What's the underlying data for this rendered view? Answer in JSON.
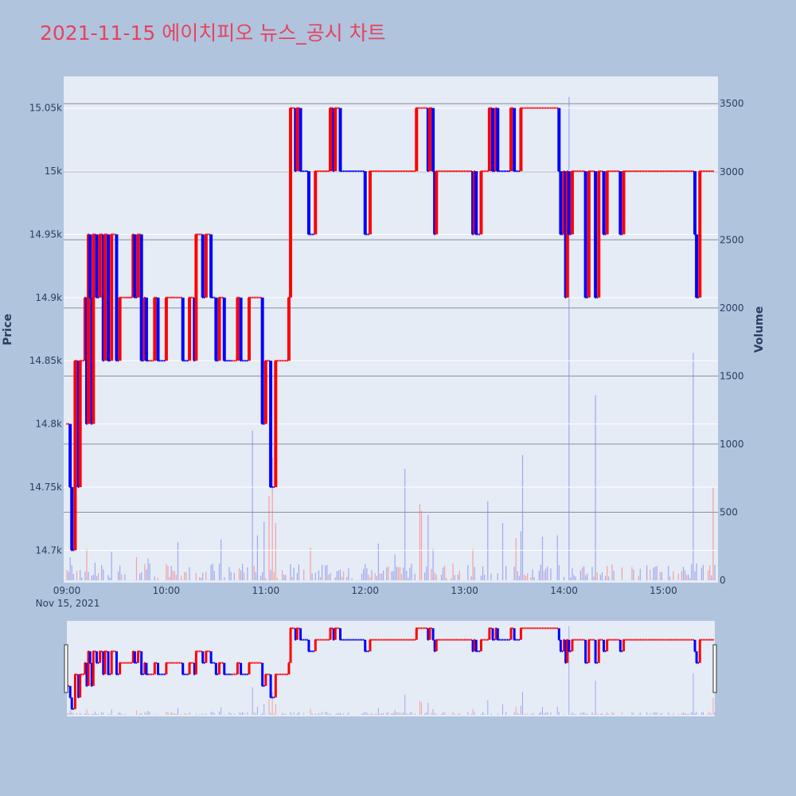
{
  "title": "2021-11-15 에이치피오 뉴스_공시 차트",
  "colors": {
    "up": "#ff0000",
    "down": "#0000ff",
    "page_bg": "#b0c4de",
    "plot_bg": "#e5ecf6",
    "title": "#e8425c"
  },
  "chart_data": {
    "type": "candlestick",
    "title": "2021-11-15 에이치피오 뉴스_공시 차트",
    "ylabel": "Price",
    "y2label": "Volume",
    "x_date_label": "Nov 15, 2021",
    "x_ticks": [
      "09:00",
      "10:00",
      "11:00",
      "12:00",
      "13:00",
      "14:00",
      "15:00"
    ],
    "y_ticks": [
      "14.7k",
      "14.75k",
      "14.8k",
      "14.85k",
      "14.9k",
      "14.95k",
      "15k",
      "15.05k"
    ],
    "y2_ticks": [
      "0",
      "500",
      "1000",
      "1500",
      "2000",
      "2500",
      "3000",
      "3500"
    ],
    "ylim": [
      14675,
      15075
    ],
    "y2lim": [
      0,
      3700
    ],
    "xlim_minutes": [
      540,
      931
    ],
    "grid": true,
    "range_slider": true,
    "price_segments": [
      {
        "t": 540,
        "p": 14800
      },
      {
        "t": 542,
        "p": 14750
      },
      {
        "t": 543,
        "p": 14700
      },
      {
        "t": 545,
        "p": 14850
      },
      {
        "t": 547,
        "p": 14750
      },
      {
        "t": 548,
        "p": 14850
      },
      {
        "t": 551,
        "p": 14900
      },
      {
        "t": 552,
        "p": 14800
      },
      {
        "t": 553,
        "p": 14950
      },
      {
        "t": 554,
        "p": 14900
      },
      {
        "t": 555,
        "p": 14800
      },
      {
        "t": 556,
        "p": 14950
      },
      {
        "t": 558,
        "p": 14900
      },
      {
        "t": 560,
        "p": 14950
      },
      {
        "t": 562,
        "p": 14850
      },
      {
        "t": 563,
        "p": 14950
      },
      {
        "t": 565,
        "p": 14850
      },
      {
        "t": 567,
        "p": 14950
      },
      {
        "t": 570,
        "p": 14850
      },
      {
        "t": 572,
        "p": 14900
      },
      {
        "t": 578,
        "p": 14900
      },
      {
        "t": 580,
        "p": 14950
      },
      {
        "t": 581,
        "p": 14900
      },
      {
        "t": 583,
        "p": 14950
      },
      {
        "t": 585,
        "p": 14850
      },
      {
        "t": 587,
        "p": 14900
      },
      {
        "t": 588,
        "p": 14850
      },
      {
        "t": 590,
        "p": 14850
      },
      {
        "t": 593,
        "p": 14900
      },
      {
        "t": 595,
        "p": 14850
      },
      {
        "t": 600,
        "p": 14900
      },
      {
        "t": 610,
        "p": 14850
      },
      {
        "t": 614,
        "p": 14900
      },
      {
        "t": 617,
        "p": 14850
      },
      {
        "t": 618,
        "p": 14950
      },
      {
        "t": 622,
        "p": 14900
      },
      {
        "t": 624,
        "p": 14950
      },
      {
        "t": 627,
        "p": 14900
      },
      {
        "t": 630,
        "p": 14850
      },
      {
        "t": 632,
        "p": 14900
      },
      {
        "t": 635,
        "p": 14850
      },
      {
        "t": 640,
        "p": 14850
      },
      {
        "t": 643,
        "p": 14900
      },
      {
        "t": 645,
        "p": 14850
      },
      {
        "t": 650,
        "p": 14900
      },
      {
        "t": 655,
        "p": 14900
      },
      {
        "t": 658,
        "p": 14800
      },
      {
        "t": 660,
        "p": 14850
      },
      {
        "t": 663,
        "p": 14750
      },
      {
        "t": 666,
        "p": 14850
      },
      {
        "t": 672,
        "p": 14850
      },
      {
        "t": 674,
        "p": 14900
      },
      {
        "t": 675,
        "p": 15050
      },
      {
        "t": 678,
        "p": 15000
      },
      {
        "t": 679,
        "p": 15050
      },
      {
        "t": 681,
        "p": 15000
      },
      {
        "t": 686,
        "p": 14950
      },
      {
        "t": 690,
        "p": 15000
      },
      {
        "t": 699,
        "p": 15050
      },
      {
        "t": 701,
        "p": 15000
      },
      {
        "t": 702,
        "p": 15050
      },
      {
        "t": 705,
        "p": 15000
      },
      {
        "t": 720,
        "p": 14950
      },
      {
        "t": 723,
        "p": 15000
      },
      {
        "t": 745,
        "p": 15000
      },
      {
        "t": 751,
        "p": 15050
      },
      {
        "t": 758,
        "p": 15000
      },
      {
        "t": 759,
        "p": 15050
      },
      {
        "t": 761,
        "p": 15000
      },
      {
        "t": 762,
        "p": 14950
      },
      {
        "t": 763,
        "p": 15000
      },
      {
        "t": 785,
        "p": 14950
      },
      {
        "t": 786,
        "p": 15000
      },
      {
        "t": 787,
        "p": 14950
      },
      {
        "t": 790,
        "p": 15000
      },
      {
        "t": 795,
        "p": 15050
      },
      {
        "t": 797,
        "p": 15000
      },
      {
        "t": 799,
        "p": 15050
      },
      {
        "t": 800,
        "p": 15000
      },
      {
        "t": 808,
        "p": 15050
      },
      {
        "t": 810,
        "p": 15000
      },
      {
        "t": 814,
        "p": 15050
      },
      {
        "t": 835,
        "p": 15050
      },
      {
        "t": 837,
        "p": 15000
      },
      {
        "t": 838,
        "p": 14950
      },
      {
        "t": 840,
        "p": 15000
      },
      {
        "t": 841,
        "p": 14900
      },
      {
        "t": 842,
        "p": 15000
      },
      {
        "t": 843,
        "p": 14950
      },
      {
        "t": 845,
        "p": 15000
      },
      {
        "t": 853,
        "p": 14900
      },
      {
        "t": 855,
        "p": 15000
      },
      {
        "t": 859,
        "p": 14900
      },
      {
        "t": 861,
        "p": 15000
      },
      {
        "t": 864,
        "p": 14950
      },
      {
        "t": 866,
        "p": 15000
      },
      {
        "t": 870,
        "p": 15000
      },
      {
        "t": 874,
        "p": 14950
      },
      {
        "t": 876,
        "p": 15000
      },
      {
        "t": 918,
        "p": 15000
      },
      {
        "t": 919,
        "p": 14950
      },
      {
        "t": 920,
        "p": 14900
      },
      {
        "t": 922,
        "p": 15000
      },
      {
        "t": 930,
        "p": 15000
      }
    ],
    "volume_spikes": [
      {
        "t": 542,
        "v": 170,
        "up": false
      },
      {
        "t": 552,
        "v": 230,
        "up": true
      },
      {
        "t": 557,
        "v": 130,
        "up": false
      },
      {
        "t": 567,
        "v": 210,
        "up": false
      },
      {
        "t": 582,
        "v": 170,
        "up": true
      },
      {
        "t": 589,
        "v": 160,
        "up": false
      },
      {
        "t": 600,
        "v": 120,
        "up": true
      },
      {
        "t": 607,
        "v": 280,
        "up": false
      },
      {
        "t": 633,
        "v": 300,
        "up": false
      },
      {
        "t": 652,
        "v": 1100,
        "up": false
      },
      {
        "t": 655,
        "v": 330,
        "up": false
      },
      {
        "t": 659,
        "v": 430,
        "up": false
      },
      {
        "t": 662,
        "v": 620,
        "up": true
      },
      {
        "t": 664,
        "v": 900,
        "up": true
      },
      {
        "t": 666,
        "v": 420,
        "up": true
      },
      {
        "t": 687,
        "v": 240,
        "up": true
      },
      {
        "t": 728,
        "v": 270,
        "up": false
      },
      {
        "t": 738,
        "v": 190,
        "up": false
      },
      {
        "t": 744,
        "v": 820,
        "up": false
      },
      {
        "t": 753,
        "v": 560,
        "up": true
      },
      {
        "t": 754,
        "v": 510,
        "up": true
      },
      {
        "t": 758,
        "v": 480,
        "up": false
      },
      {
        "t": 761,
        "v": 230,
        "up": false
      },
      {
        "t": 785,
        "v": 230,
        "up": true
      },
      {
        "t": 794,
        "v": 580,
        "up": false
      },
      {
        "t": 803,
        "v": 420,
        "up": false
      },
      {
        "t": 811,
        "v": 310,
        "up": true
      },
      {
        "t": 814,
        "v": 360,
        "up": false
      },
      {
        "t": 815,
        "v": 920,
        "up": false
      },
      {
        "t": 827,
        "v": 320,
        "up": false
      },
      {
        "t": 836,
        "v": 330,
        "up": false
      },
      {
        "t": 843,
        "v": 3550,
        "up": false
      },
      {
        "t": 859,
        "v": 1360,
        "up": false
      },
      {
        "t": 918,
        "v": 1670,
        "up": false
      },
      {
        "t": 930,
        "v": 680,
        "up": true
      }
    ]
  }
}
